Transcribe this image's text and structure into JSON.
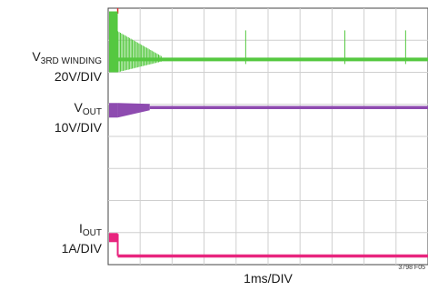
{
  "chart_data": {
    "type": "line",
    "title": "",
    "xlabel": "1ms/DIV",
    "figure_id": "3798 F05",
    "grid": true,
    "grid_divisions": {
      "x": 10,
      "y": 8
    },
    "xlim_ms": [
      0,
      10
    ],
    "series": [
      {
        "name_main": "V",
        "name_sub": "3RD WINDING",
        "scale": "20V/DIV",
        "color": "#55c840",
        "description_values": {
          "burst_end_ms": 0.3,
          "ringing_end_ms": 1.7,
          "settled_level_div": 6.4,
          "spikes_ms": [
            4.3,
            7.4,
            9.3
          ]
        }
      },
      {
        "name_main": "V",
        "name_sub": "OUT",
        "scale": "10V/DIV",
        "color": "#8e4bb0",
        "description_values": {
          "rise_start_ms": 0.0,
          "rise_end_ms": 1.3,
          "settled_level_div": 4.9
        }
      },
      {
        "name_main": "I",
        "name_sub": "OUT",
        "scale": "1A/DIV",
        "color": "#e8257e",
        "description_values": {
          "initial_level_div": 0.9,
          "step_time_ms": 0.3,
          "settled_level_div": 0.1
        }
      }
    ]
  }
}
